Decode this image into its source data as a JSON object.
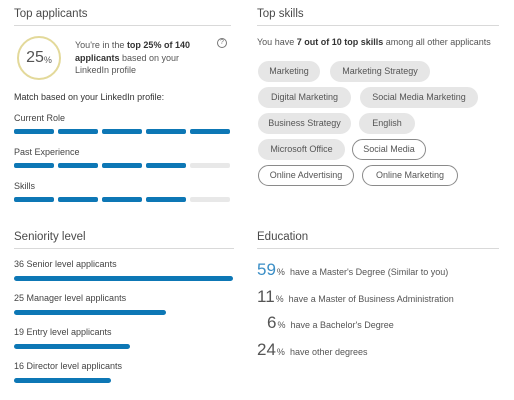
{
  "top_applicants": {
    "title": "Top applicants",
    "badge": {
      "value": "25",
      "unit": "%"
    },
    "rank_prefix": "You're in the ",
    "rank_bold": "top 25% of 140 applicants",
    "rank_suffix": " based on your LinkedIn profile",
    "help_icon": "question-circle-icon",
    "match_title": "Match based on your LinkedIn profile:",
    "criteria": [
      {
        "label": "Current Role",
        "filled": 5,
        "total": 5
      },
      {
        "label": "Past Experience",
        "filled": 4,
        "total": 5
      },
      {
        "label": "Skills",
        "filled": 4,
        "total": 5
      }
    ]
  },
  "seniority": {
    "title": "Seniority level",
    "levels": [
      {
        "label": "36 Senior level applicants",
        "count": 36
      },
      {
        "label": "25 Manager level applicants",
        "count": 25
      },
      {
        "label": "19 Entry level applicants",
        "count": 19
      },
      {
        "label": "16 Director level applicants",
        "count": 16
      }
    ]
  },
  "top_skills": {
    "title": "Top skills",
    "summary_prefix": "You have ",
    "summary_bold": "7 out of 10 top skills",
    "summary_suffix": " among all other applicants",
    "skills": [
      {
        "name": "Marketing",
        "matched": true
      },
      {
        "name": "Marketing Strategy",
        "matched": true
      },
      {
        "name": "Digital Marketing",
        "matched": true
      },
      {
        "name": "Social Media Marketing",
        "matched": true
      },
      {
        "name": "Business Strategy",
        "matched": true
      },
      {
        "name": "English",
        "matched": true
      },
      {
        "name": "Microsoft Office",
        "matched": true
      },
      {
        "name": "Social Media",
        "matched": false
      },
      {
        "name": "Online Advertising",
        "matched": false
      },
      {
        "name": "Online Marketing",
        "matched": false
      }
    ]
  },
  "education": {
    "title": "Education",
    "rows": [
      {
        "value": "59",
        "unit": "%",
        "text": "have a Master's Degree (Similar to you)",
        "highlight": true
      },
      {
        "value": "11",
        "unit": "%",
        "text": "have a Master of Business Administration",
        "highlight": false
      },
      {
        "value": "6",
        "unit": "%",
        "text": "have a Bachelor's Degree",
        "highlight": false
      },
      {
        "value": "24",
        "unit": "%",
        "text": "have other degrees",
        "highlight": false
      }
    ]
  },
  "colors": {
    "accent": "#0d77b5",
    "highlight_text": "#3a8ec6",
    "badge_ring": "#e3d99a",
    "pill_bg": "#e6e6e6"
  }
}
